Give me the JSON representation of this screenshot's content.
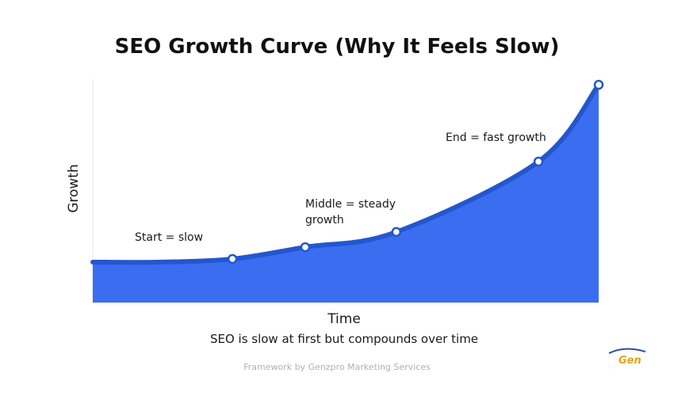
{
  "chart_data": {
    "type": "area",
    "title": "SEO Growth Curve (Why It Feels Slow)",
    "x_label": "Time",
    "y_label": "Growth",
    "caption": "SEO is slow at first but compounds over time",
    "annotations": [
      "Start = slow",
      "Middle = steady growth",
      "End = fast growth"
    ],
    "series": [
      {
        "color": "#3a6df0",
        "x": [
          0,
          13,
          27.6,
          42,
          60,
          88.1,
          100
        ],
        "values": [
          18.1,
          18.1,
          19.5,
          24.8,
          31.6,
          63.1,
          97.5
        ]
      }
    ],
    "xlim": [
      0,
      100
    ],
    "ylim": [
      0,
      100
    ]
  },
  "footer": "Framework by Genzpro Marketing Services",
  "logo": "Gen"
}
